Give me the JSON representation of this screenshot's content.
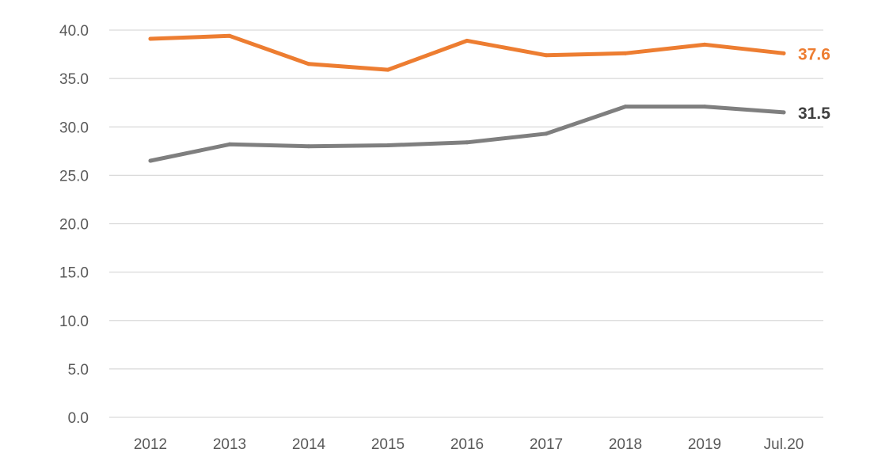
{
  "chart_data": {
    "type": "line",
    "categories": [
      "2012",
      "2013",
      "2014",
      "2015",
      "2016",
      "2017",
      "2018",
      "2019",
      "Jul.20"
    ],
    "series": [
      {
        "values": [
          39.1,
          39.4,
          36.5,
          35.9,
          38.9,
          37.4,
          37.6,
          38.5,
          37.6
        ],
        "color": "#ED7D31",
        "end_label": "37.6"
      },
      {
        "values": [
          26.5,
          28.2,
          28.0,
          28.1,
          28.4,
          29.3,
          32.1,
          32.1,
          31.5
        ],
        "color": "#7F7F7F",
        "end_label_color": "#404040",
        "end_label": "31.5"
      }
    ],
    "y_ticks": [
      "0.0",
      "5.0",
      "10.0",
      "15.0",
      "20.0",
      "25.0",
      "30.0",
      "35.0",
      "40.0"
    ],
    "ylim": [
      0,
      40
    ],
    "grid": "horizontal",
    "legend": "none",
    "gridline_color": "#D9D9D9",
    "tick_label_color": "#595959"
  }
}
